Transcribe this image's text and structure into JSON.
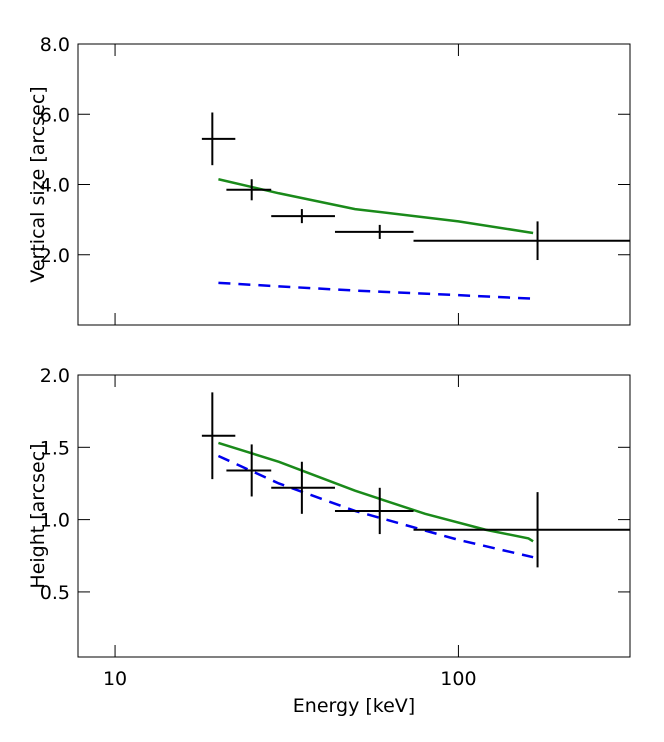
{
  "chart_data": [
    {
      "type": "errorbar-line",
      "ylabel": "Vertical size [arcsec]",
      "xlim": [
        7.8,
        316
      ],
      "log_x": true,
      "ylim": [
        0,
        8
      ],
      "yticks": [
        {
          "value": 2,
          "label": "2.0"
        },
        {
          "value": 4,
          "label": "4.0"
        },
        {
          "value": 6,
          "label": "6.0"
        },
        {
          "value": 8,
          "label": "8.0"
        }
      ],
      "points": {
        "color": "#000000",
        "x": [
          19.2,
          25,
          35,
          59,
          170
        ],
        "xlo": [
          17.9,
          21.1,
          28.5,
          43.7,
          74
        ],
        "xhi": [
          22.4,
          28.5,
          43.7,
          74,
          316
        ],
        "values": [
          5.3,
          3.85,
          3.1,
          2.65,
          2.4
        ],
        "yerr": [
          0.75,
          0.3,
          0.2,
          0.2,
          0.55
        ]
      },
      "series": [
        {
          "color": "#1a8a1a",
          "dashed": false,
          "x": [
            20,
            30,
            50,
            100,
            165
          ],
          "values": [
            4.15,
            3.75,
            3.3,
            2.95,
            2.62
          ]
        },
        {
          "color": "#0000ee",
          "dashed": true,
          "x": [
            20,
            30,
            50,
            100,
            165
          ],
          "values": [
            1.2,
            1.1,
            0.98,
            0.85,
            0.75
          ]
        }
      ]
    },
    {
      "type": "errorbar-line",
      "ylabel": "Height [arcsec]",
      "xlabel": "Energy [keV]",
      "xlim": [
        7.8,
        316
      ],
      "log_x": true,
      "ylim": [
        0.05,
        2.0
      ],
      "xticks": [
        10,
        100
      ],
      "yticks": [
        {
          "value": 0.5,
          "label": "0.5"
        },
        {
          "value": 1.0,
          "label": "1.0"
        },
        {
          "value": 1.5,
          "label": "1.5"
        },
        {
          "value": 2.0,
          "label": "2.0"
        }
      ],
      "points": {
        "color": "#000000",
        "x": [
          19.2,
          25,
          35,
          59,
          170
        ],
        "xlo": [
          17.9,
          21.1,
          28.5,
          43.7,
          74
        ],
        "xhi": [
          22.4,
          28.5,
          43.7,
          74,
          316
        ],
        "values": [
          1.58,
          1.34,
          1.22,
          1.06,
          0.93
        ],
        "yerr": [
          0.3,
          0.18,
          0.18,
          0.16,
          0.26
        ]
      },
      "series": [
        {
          "color": "#1a8a1a",
          "dashed": false,
          "x": [
            20,
            30,
            50,
            80,
            120,
            160,
            165
          ],
          "values": [
            1.53,
            1.4,
            1.2,
            1.04,
            0.93,
            0.87,
            0.85
          ]
        },
        {
          "color": "#0000ee",
          "dashed": true,
          "x": [
            20,
            30,
            50,
            100,
            165
          ],
          "values": [
            1.44,
            1.25,
            1.06,
            0.86,
            0.74
          ]
        }
      ]
    }
  ]
}
